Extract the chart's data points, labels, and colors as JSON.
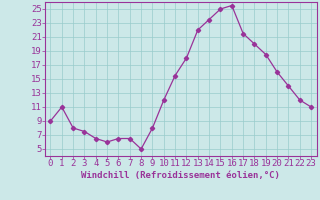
{
  "x": [
    0,
    1,
    2,
    3,
    4,
    5,
    6,
    7,
    8,
    9,
    10,
    11,
    12,
    13,
    14,
    15,
    16,
    17,
    18,
    19,
    20,
    21,
    22,
    23
  ],
  "y": [
    9,
    11,
    8,
    7.5,
    6.5,
    6,
    6.5,
    6.5,
    5,
    8,
    12,
    15.5,
    18,
    22,
    23.5,
    25,
    25.5,
    21.5,
    20,
    18.5,
    16,
    14,
    12,
    11
  ],
  "line_color": "#993399",
  "marker": "D",
  "marker_size": 2.2,
  "bg_color": "#cce8e8",
  "grid_color": "#99cccc",
  "xlabel": "Windchill (Refroidissement éolien,°C)",
  "xlabel_fontsize": 6.5,
  "tick_label_fontsize": 6.5,
  "ylim": [
    4,
    26
  ],
  "yticks": [
    5,
    7,
    9,
    11,
    13,
    15,
    17,
    19,
    21,
    23,
    25
  ],
  "xlim": [
    -0.5,
    23.5
  ],
  "xticks": [
    0,
    1,
    2,
    3,
    4,
    5,
    6,
    7,
    8,
    9,
    10,
    11,
    12,
    13,
    14,
    15,
    16,
    17,
    18,
    19,
    20,
    21,
    22,
    23
  ],
  "linewidth": 0.9
}
